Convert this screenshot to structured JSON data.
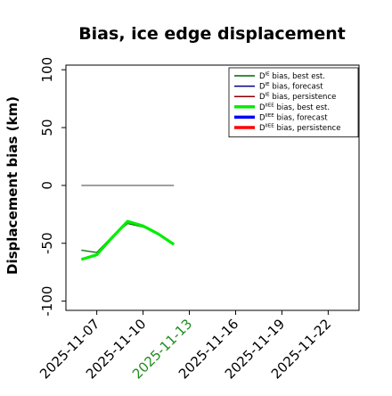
{
  "chart_data": {
    "type": "line",
    "title": "Bias, ice edge displacement",
    "xlabel": "",
    "ylabel": "Displacement bias (km)",
    "ylim": [
      -108,
      104
    ],
    "yticks": [
      100,
      50,
      0,
      -50,
      -100
    ],
    "xlim": [
      "2025-11-05",
      "2025-11-24"
    ],
    "xticks": [
      {
        "date": "2025-11-07",
        "label": "2025-11-07",
        "color": "#000000"
      },
      {
        "date": "2025-11-10",
        "label": "2025-11-10",
        "color": "#000000"
      },
      {
        "date": "2025-11-13",
        "label": "2025-11-13",
        "color": "#228b22"
      },
      {
        "date": "2025-11-16",
        "label": "2025-11-16",
        "color": "#000000"
      },
      {
        "date": "2025-11-19",
        "label": "2025-11-19",
        "color": "#000000"
      },
      {
        "date": "2025-11-22",
        "label": "2025-11-22",
        "color": "#000000"
      }
    ],
    "legend_position": "top-right",
    "series": [
      {
        "name": "D^IE bias, best est.",
        "legend_main": "D",
        "legend_sup": "IE",
        "legend_rest": " bias, best est.",
        "color": "#006400",
        "width": 1.2,
        "in_legend": true,
        "legend_width": 1.5,
        "x": [
          "2025-11-06",
          "2025-11-07",
          "2025-11-08",
          "2025-11-09",
          "2025-11-10",
          "2025-11-11",
          "2025-11-12"
        ],
        "y": [
          -56,
          -58,
          -44,
          -33,
          -36,
          -42,
          -51
        ]
      },
      {
        "name": "D^IE bias, forecast",
        "legend_main": "D",
        "legend_sup": "IE",
        "legend_rest": " bias, forecast",
        "color": "#00008b",
        "width": 1.2,
        "in_legend": true,
        "legend_width": 1.5,
        "x": [],
        "y": []
      },
      {
        "name": "D^IE bias, persistence",
        "legend_main": "D",
        "legend_sup": "IE",
        "legend_rest": " bias, persistence",
        "color": "#8b0000",
        "width": 1.2,
        "in_legend": true,
        "legend_width": 1.5,
        "x": [],
        "y": []
      },
      {
        "name": "D^IIEE bias, best est.",
        "legend_main": "D",
        "legend_sup": "IIEE",
        "legend_rest": " bias, best est.",
        "color": "#00ee00",
        "width": 3.2,
        "in_legend": true,
        "legend_width": 3.5,
        "x": [
          "2025-11-06",
          "2025-11-07",
          "2025-11-08",
          "2025-11-09",
          "2025-11-10",
          "2025-11-11",
          "2025-11-12"
        ],
        "y": [
          -64,
          -60,
          -45,
          -31,
          -35,
          -42,
          -51
        ]
      },
      {
        "name": "D^IIEE bias, forecast",
        "legend_main": "D",
        "legend_sup": "IIEE",
        "legend_rest": " bias, forecast",
        "color": "#0000ff",
        "width": 3.2,
        "in_legend": true,
        "legend_width": 3.5,
        "x": [],
        "y": []
      },
      {
        "name": "D^IIEE bias, persistence",
        "legend_main": "D",
        "legend_sup": "IIEE",
        "legend_rest": " bias, persistence",
        "color": "#ff0000",
        "width": 3.2,
        "in_legend": true,
        "legend_width": 3.5,
        "x": [],
        "y": []
      },
      {
        "name": "",
        "color": "#808080",
        "width": 1.5,
        "in_legend": false,
        "x": [
          "2025-11-06",
          "2025-11-12"
        ],
        "y": [
          0,
          0
        ]
      }
    ]
  }
}
